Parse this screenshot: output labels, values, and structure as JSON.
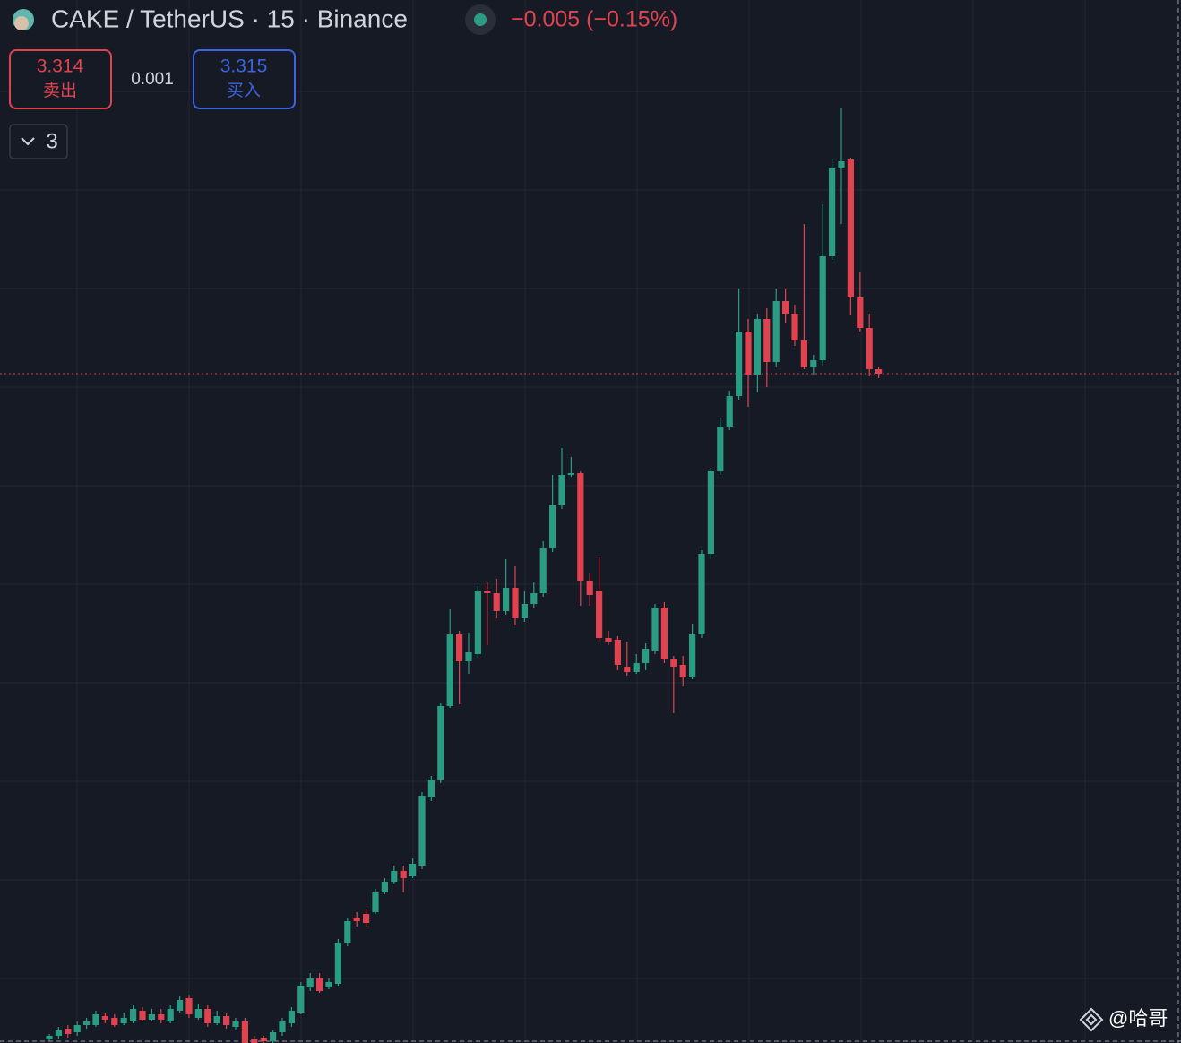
{
  "chart_data": {
    "type": "candlestick",
    "title": "CAKE / TetherUS · 15 · Binance",
    "change": "−0.005 (−0.15%)",
    "sell_price": 3.314,
    "sell_label": "卖出",
    "spread": 0.001,
    "buy_price": 3.315,
    "buy_label": "买入",
    "indicator_count": 3,
    "watermark": "@哈哥",
    "up_color": "#2b9c84",
    "down_color": "#e0434f",
    "ylim": [
      2.567,
      3.731
    ],
    "open": [
      2.571,
      2.575,
      2.583,
      2.579,
      2.587,
      2.587,
      2.597,
      2.595,
      2.589,
      2.591,
      2.603,
      2.593,
      2.599,
      2.591,
      2.603,
      2.617,
      2.595,
      2.605,
      2.589,
      2.597,
      2.585,
      2.591,
      2.571,
      2.573,
      2.569,
      2.579,
      2.589,
      2.601,
      2.629,
      2.639,
      2.629,
      2.633,
      2.679,
      2.707,
      2.711,
      2.713,
      2.735,
      2.747,
      2.759,
      2.753,
      2.765,
      2.841,
      2.861,
      2.943,
      3.023,
      2.993,
      3.001,
      3.071,
      3.069,
      3.049,
      3.075,
      3.041,
      3.057,
      3.069,
      3.119,
      3.167,
      3.201,
      3.203,
      3.083,
      3.071,
      3.019,
      3.017,
      2.987,
      2.981,
      2.991,
      3.005,
      3.053,
      2.995,
      2.989,
      2.975,
      3.023,
      3.113,
      3.205,
      3.255,
      3.289,
      3.361,
      3.313,
      3.375,
      3.327,
      3.395,
      3.381,
      3.351,
      3.321,
      3.329,
      3.445,
      3.543,
      3.553,
      3.399,
      3.365,
      3.319
    ],
    "high": [
      2.577,
      2.585,
      2.587,
      2.591,
      2.595,
      2.603,
      2.601,
      2.599,
      2.601,
      2.609,
      2.607,
      2.605,
      2.605,
      2.609,
      2.619,
      2.621,
      2.611,
      2.609,
      2.603,
      2.601,
      2.595,
      2.595,
      2.575,
      2.575,
      2.581,
      2.595,
      2.607,
      2.635,
      2.645,
      2.645,
      2.639,
      2.683,
      2.707,
      2.713,
      2.717,
      2.739,
      2.751,
      2.765,
      2.765,
      2.773,
      2.847,
      2.865,
      2.947,
      3.051,
      3.027,
      3.025,
      3.077,
      3.081,
      3.085,
      3.107,
      3.099,
      3.071,
      3.081,
      3.127,
      3.201,
      3.231,
      3.221,
      3.205,
      3.091,
      3.109,
      3.027,
      3.021,
      3.015,
      3.001,
      3.013,
      3.057,
      3.059,
      2.999,
      2.999,
      3.035,
      3.117,
      3.209,
      3.265,
      3.295,
      3.409,
      3.375,
      3.381,
      3.387,
      3.409,
      3.409,
      3.391,
      3.481,
      3.335,
      3.503,
      3.553,
      3.611,
      3.555,
      3.427,
      3.381,
      3.321
    ],
    "low": [
      2.569,
      2.571,
      2.573,
      2.575,
      2.583,
      2.585,
      2.589,
      2.585,
      2.587,
      2.589,
      2.591,
      2.591,
      2.589,
      2.589,
      2.601,
      2.595,
      2.593,
      2.585,
      2.587,
      2.583,
      2.581,
      2.567,
      2.567,
      2.567,
      2.567,
      2.575,
      2.585,
      2.599,
      2.625,
      2.623,
      2.627,
      2.631,
      2.675,
      2.697,
      2.697,
      2.711,
      2.733,
      2.745,
      2.735,
      2.751,
      2.761,
      2.837,
      2.857,
      2.941,
      2.945,
      2.979,
      2.997,
      3.011,
      3.041,
      3.045,
      3.033,
      3.037,
      3.053,
      3.065,
      3.115,
      3.163,
      3.199,
      3.055,
      3.055,
      3.015,
      3.011,
      2.983,
      2.977,
      2.979,
      2.983,
      3.001,
      2.991,
      2.935,
      2.965,
      2.973,
      3.019,
      3.107,
      3.201,
      3.251,
      3.285,
      3.277,
      3.293,
      3.299,
      3.321,
      3.371,
      3.345,
      3.319,
      3.313,
      3.323,
      3.441,
      3.481,
      3.379,
      3.361,
      3.311,
      3.309
    ],
    "close": [
      2.575,
      2.581,
      2.577,
      2.587,
      2.591,
      2.599,
      2.593,
      2.587,
      2.595,
      2.605,
      2.593,
      2.599,
      2.593,
      2.605,
      2.615,
      2.599,
      2.605,
      2.589,
      2.597,
      2.587,
      2.591,
      2.567,
      2.567,
      2.569,
      2.579,
      2.591,
      2.603,
      2.631,
      2.639,
      2.625,
      2.635,
      2.679,
      2.703,
      2.703,
      2.701,
      2.735,
      2.747,
      2.759,
      2.751,
      2.767,
      2.843,
      2.861,
      2.943,
      3.023,
      2.993,
      3.003,
      3.071,
      3.069,
      3.049,
      3.075,
      3.041,
      3.057,
      3.069,
      3.119,
      3.167,
      3.201,
      3.203,
      3.083,
      3.067,
      3.019,
      3.015,
      2.989,
      2.981,
      2.991,
      3.007,
      3.053,
      2.995,
      2.987,
      2.975,
      3.023,
      3.113,
      3.205,
      3.255,
      3.289,
      3.361,
      3.313,
      3.375,
      3.327,
      3.395,
      3.381,
      3.351,
      3.321,
      3.329,
      3.445,
      3.543,
      3.551,
      3.399,
      3.365,
      3.319,
      3.314
    ]
  }
}
